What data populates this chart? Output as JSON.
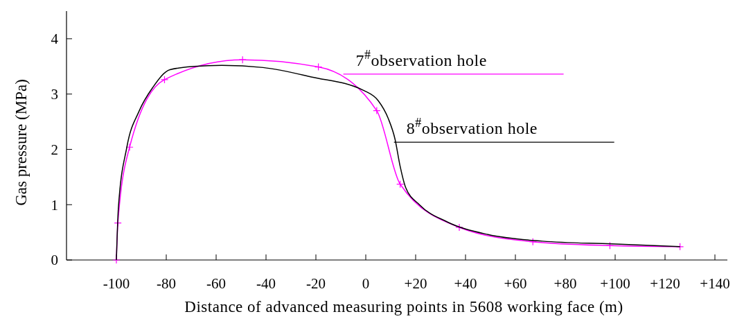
{
  "chart_data": {
    "type": "line",
    "xlabel": "Distance of advanced measuring points in 5608 working face (m)",
    "ylabel": "Gas pressure (MPa)",
    "xlim": [
      -120,
      145
    ],
    "ylim": [
      0,
      4.5
    ],
    "xticks": [
      -100,
      -80,
      -60,
      -40,
      -20,
      0,
      {
        "value": 20,
        "label": "+20"
      },
      {
        "value": 40,
        "label": "+40"
      },
      {
        "value": 60,
        "label": "+60"
      },
      {
        "value": 80,
        "label": "+80"
      },
      {
        "value": 100,
        "label": "+100"
      },
      {
        "value": 120,
        "label": "+120"
      },
      {
        "value": 140,
        "label": "+140"
      }
    ],
    "yticks": [
      0,
      1,
      2,
      3,
      4
    ],
    "grid": false,
    "series": [
      {
        "color": "#ff00ff",
        "marker": "cross",
        "x": [
          -100,
          -99.4,
          -94.7,
          -80.7,
          -49.4,
          -19,
          4.4,
          13.8,
          37.5,
          67,
          97.9,
          126
        ],
        "values": [
          0,
          0.67,
          2.04,
          3.26,
          3.62,
          3.49,
          2.7,
          1.37,
          0.59,
          0.33,
          0.26,
          0.24
        ]
      },
      {
        "color": "#000000",
        "marker": "none",
        "x": [
          -100,
          -99.2,
          -95.8,
          -90.9,
          -85.4,
          -78.5,
          -68.8,
          -57.7,
          -41.2,
          -21.9,
          -0.6,
          5,
          9,
          11.7,
          13.8,
          16,
          21.5,
          32.6,
          49,
          71,
          98.6,
          126
        ],
        "values": [
          0,
          0.94,
          2.04,
          2.69,
          3.12,
          3.44,
          3.5,
          3.52,
          3.48,
          3.31,
          3.06,
          2.88,
          2.56,
          2.19,
          1.69,
          1.31,
          1.0,
          0.69,
          0.46,
          0.34,
          0.29,
          0.24
        ]
      }
    ],
    "annotations": [
      {
        "text": "7$^{#}$observation hole",
        "x": -9,
        "y": 3.36
      },
      {
        "text": "8$^{#}$observation hole",
        "x": 11.3,
        "y": 2.13
      }
    ]
  }
}
